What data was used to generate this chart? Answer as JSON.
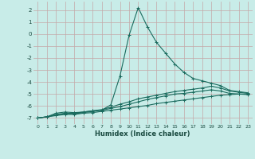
{
  "xlabel": "Humidex (Indice chaleur)",
  "xlim": [
    -0.5,
    23.5
  ],
  "ylim": [
    -7.5,
    2.7
  ],
  "yticks": [
    2,
    1,
    0,
    -1,
    -2,
    -3,
    -4,
    -5,
    -6,
    -7
  ],
  "xticks": [
    0,
    1,
    2,
    3,
    4,
    5,
    6,
    7,
    8,
    9,
    10,
    11,
    12,
    13,
    14,
    15,
    16,
    17,
    18,
    19,
    20,
    21,
    22,
    23
  ],
  "bg_color": "#c8ece8",
  "grid_color": "#c4a8a8",
  "line_color": "#1a6b5e",
  "series": [
    {
      "x": [
        0,
        1,
        2,
        3,
        4,
        5,
        6,
        7,
        8,
        9,
        10,
        11,
        12,
        13,
        14,
        15,
        16,
        17,
        18,
        19,
        20,
        21,
        22,
        23
      ],
      "y": [
        -7.0,
        -6.9,
        -6.6,
        -6.5,
        -6.55,
        -6.5,
        -6.4,
        -6.35,
        -5.9,
        -3.5,
        -0.1,
        2.2,
        0.6,
        -0.7,
        -1.6,
        -2.5,
        -3.2,
        -3.7,
        -3.9,
        -4.1,
        -4.3,
        -4.7,
        -4.8,
        -4.9
      ]
    },
    {
      "x": [
        0,
        1,
        2,
        3,
        4,
        5,
        6,
        7,
        8,
        9,
        10,
        11,
        12,
        13,
        14,
        15,
        16,
        17,
        18,
        19,
        20,
        21,
        22,
        23
      ],
      "y": [
        -7.0,
        -6.9,
        -6.7,
        -6.6,
        -6.6,
        -6.5,
        -6.4,
        -6.3,
        -6.1,
        -5.85,
        -5.65,
        -5.4,
        -5.25,
        -5.1,
        -4.95,
        -4.8,
        -4.7,
        -4.6,
        -4.5,
        -4.35,
        -4.5,
        -4.75,
        -4.85,
        -4.95
      ]
    },
    {
      "x": [
        0,
        1,
        2,
        3,
        4,
        5,
        6,
        7,
        8,
        9,
        10,
        11,
        12,
        13,
        14,
        15,
        16,
        17,
        18,
        19,
        20,
        21,
        22,
        23
      ],
      "y": [
        -7.0,
        -6.9,
        -6.75,
        -6.65,
        -6.65,
        -6.55,
        -6.45,
        -6.35,
        -6.2,
        -6.05,
        -5.85,
        -5.65,
        -5.45,
        -5.3,
        -5.15,
        -5.0,
        -4.95,
        -4.85,
        -4.75,
        -4.65,
        -4.75,
        -4.95,
        -5.0,
        -5.05
      ]
    },
    {
      "x": [
        0,
        1,
        2,
        3,
        4,
        5,
        6,
        7,
        8,
        9,
        10,
        11,
        12,
        13,
        14,
        15,
        16,
        17,
        18,
        19,
        20,
        21,
        22,
        23
      ],
      "y": [
        -7.0,
        -6.9,
        -6.8,
        -6.7,
        -6.7,
        -6.6,
        -6.55,
        -6.45,
        -6.35,
        -6.25,
        -6.15,
        -6.05,
        -5.95,
        -5.8,
        -5.7,
        -5.6,
        -5.5,
        -5.4,
        -5.3,
        -5.2,
        -5.1,
        -5.05,
        -5.0,
        -5.0
      ]
    }
  ]
}
